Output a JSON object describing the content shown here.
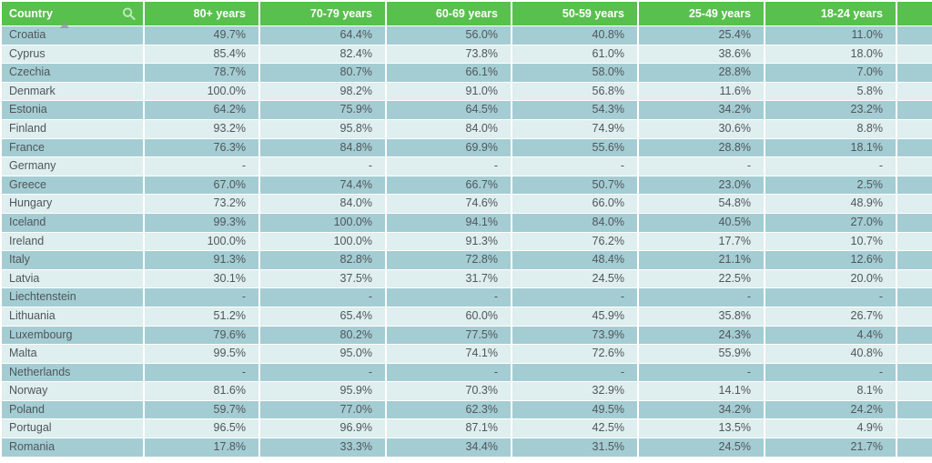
{
  "colors": {
    "header_bg": "#58c04d",
    "header_text": "#ffffff",
    "row_dark": "#a4cdd3",
    "row_light": "#dfeeee",
    "cell_text": "#4f565a"
  },
  "icons": {
    "search": "magnifier-icon",
    "sort": "sort-ascending-triangle"
  },
  "table": {
    "sort": {
      "column": "Country",
      "direction": "ascending"
    },
    "missing_value_placeholder": "-",
    "columns": [
      "Country",
      "80+ years",
      "70-79 years",
      "60-69 years",
      "50-59 years",
      "25-49 years",
      "18-24 years",
      ""
    ],
    "rows": [
      {
        "country": "Croatia",
        "values": [
          "49.7%",
          "64.4%",
          "56.0%",
          "40.8%",
          "25.4%",
          "11.0%"
        ]
      },
      {
        "country": "Cyprus",
        "values": [
          "85.4%",
          "82.4%",
          "73.8%",
          "61.0%",
          "38.6%",
          "18.0%"
        ]
      },
      {
        "country": "Czechia",
        "values": [
          "78.7%",
          "80.7%",
          "66.1%",
          "58.0%",
          "28.8%",
          "7.0%"
        ]
      },
      {
        "country": "Denmark",
        "values": [
          "100.0%",
          "98.2%",
          "91.0%",
          "56.8%",
          "11.6%",
          "5.8%"
        ]
      },
      {
        "country": "Estonia",
        "values": [
          "64.2%",
          "75.9%",
          "64.5%",
          "54.3%",
          "34.2%",
          "23.2%"
        ]
      },
      {
        "country": "Finland",
        "values": [
          "93.2%",
          "95.8%",
          "84.0%",
          "74.9%",
          "30.6%",
          "8.8%"
        ]
      },
      {
        "country": "France",
        "values": [
          "76.3%",
          "84.8%",
          "69.9%",
          "55.6%",
          "28.8%",
          "18.1%"
        ]
      },
      {
        "country": "Germany",
        "values": [
          "-",
          "-",
          "-",
          "-",
          "-",
          "-"
        ]
      },
      {
        "country": "Greece",
        "values": [
          "67.0%",
          "74.4%",
          "66.7%",
          "50.7%",
          "23.0%",
          "2.5%"
        ]
      },
      {
        "country": "Hungary",
        "values": [
          "73.2%",
          "84.0%",
          "74.6%",
          "66.0%",
          "54.8%",
          "48.9%"
        ]
      },
      {
        "country": "Iceland",
        "values": [
          "99.3%",
          "100.0%",
          "94.1%",
          "84.0%",
          "40.5%",
          "27.0%"
        ]
      },
      {
        "country": "Ireland",
        "values": [
          "100.0%",
          "100.0%",
          "91.3%",
          "76.2%",
          "17.7%",
          "10.7%"
        ]
      },
      {
        "country": "Italy",
        "values": [
          "91.3%",
          "82.8%",
          "72.8%",
          "48.4%",
          "21.1%",
          "12.6%"
        ]
      },
      {
        "country": "Latvia",
        "values": [
          "30.1%",
          "37.5%",
          "31.7%",
          "24.5%",
          "22.5%",
          "20.0%"
        ]
      },
      {
        "country": "Liechtenstein",
        "values": [
          "-",
          "-",
          "-",
          "-",
          "-",
          "-"
        ]
      },
      {
        "country": "Lithuania",
        "values": [
          "51.2%",
          "65.4%",
          "60.0%",
          "45.9%",
          "35.8%",
          "26.7%"
        ]
      },
      {
        "country": "Luxembourg",
        "values": [
          "79.6%",
          "80.2%",
          "77.5%",
          "73.9%",
          "24.3%",
          "4.4%"
        ]
      },
      {
        "country": "Malta",
        "values": [
          "99.5%",
          "95.0%",
          "74.1%",
          "72.6%",
          "55.9%",
          "40.8%"
        ]
      },
      {
        "country": "Netherlands",
        "values": [
          "-",
          "-",
          "-",
          "-",
          "-",
          "-"
        ]
      },
      {
        "country": "Norway",
        "values": [
          "81.6%",
          "95.9%",
          "70.3%",
          "32.9%",
          "14.1%",
          "8.1%"
        ]
      },
      {
        "country": "Poland",
        "values": [
          "59.7%",
          "77.0%",
          "62.3%",
          "49.5%",
          "34.2%",
          "24.2%"
        ]
      },
      {
        "country": "Portugal",
        "values": [
          "96.5%",
          "96.9%",
          "87.1%",
          "42.5%",
          "13.5%",
          "4.9%"
        ]
      },
      {
        "country": "Romania",
        "values": [
          "17.8%",
          "33.3%",
          "34.4%",
          "31.5%",
          "24.5%",
          "21.7%"
        ]
      }
    ]
  }
}
